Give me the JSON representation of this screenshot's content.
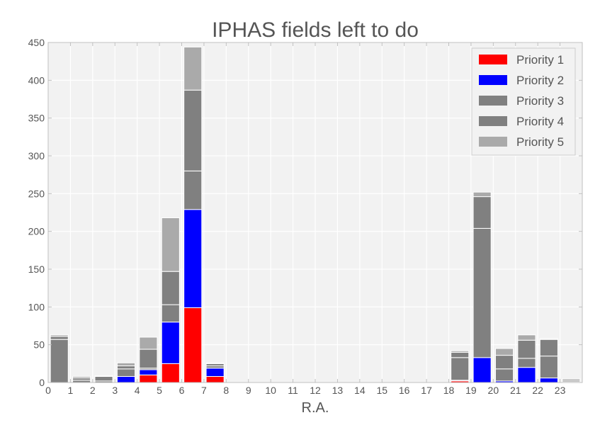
{
  "colors": {
    "plot_background": "#f2f2f2",
    "grid": "#ffffff",
    "axis": "#bfbfbf",
    "text": "#555555",
    "bar_edge": "#ffffff"
  },
  "chart_data": {
    "type": "bar",
    "stacked": true,
    "title": "IPHAS fields left to do",
    "xlabel": "R.A.",
    "ylabel": "",
    "xlim": [
      0,
      24
    ],
    "ylim": [
      0,
      450
    ],
    "xticks": [
      0,
      1,
      2,
      3,
      4,
      5,
      6,
      7,
      8,
      9,
      10,
      11,
      12,
      13,
      14,
      15,
      16,
      17,
      18,
      19,
      20,
      21,
      22,
      23
    ],
    "yticks": [
      0,
      50,
      100,
      150,
      200,
      250,
      300,
      350,
      400,
      450
    ],
    "grid": true,
    "legend_position": "top-right",
    "categories": [
      0,
      1,
      2,
      3,
      4,
      5,
      6,
      7,
      8,
      9,
      10,
      11,
      12,
      13,
      14,
      15,
      16,
      17,
      18,
      19,
      20,
      21,
      22,
      23
    ],
    "series": [
      {
        "name": "Priority 1",
        "color": "#ff0000",
        "values": [
          0,
          0,
          0,
          0,
          10,
          25,
          99,
          8,
          0,
          0,
          0,
          0,
          0,
          0,
          0,
          0,
          0,
          0,
          2,
          0,
          0,
          0,
          0,
          0
        ]
      },
      {
        "name": "Priority 2",
        "color": "#0000ff",
        "values": [
          0,
          0,
          0,
          8,
          7,
          55,
          130,
          11,
          0,
          0,
          0,
          0,
          0,
          0,
          0,
          0,
          0,
          0,
          1,
          33,
          2,
          20,
          6,
          0
        ]
      },
      {
        "name": "Priority 3",
        "color": "#808080",
        "values": [
          57,
          3,
          2,
          10,
          2,
          23,
          51,
          3,
          0,
          0,
          0,
          0,
          0,
          0,
          0,
          0,
          0,
          0,
          30,
          171,
          16,
          12,
          29,
          1
        ]
      },
      {
        "name": "Priority 4",
        "color": "#808080",
        "values": [
          4,
          3,
          6,
          4,
          25,
          44,
          107,
          3,
          0,
          0,
          0,
          0,
          0,
          0,
          0,
          0,
          0,
          0,
          7,
          42,
          18,
          24,
          22,
          2
        ]
      },
      {
        "name": "Priority 5",
        "color": "#aaaaaa",
        "values": [
          2,
          2,
          1,
          4,
          16,
          71,
          57,
          1,
          0,
          0,
          0,
          0,
          0,
          0,
          0,
          0,
          0,
          0,
          2,
          6,
          9,
          7,
          1,
          2
        ]
      }
    ]
  }
}
